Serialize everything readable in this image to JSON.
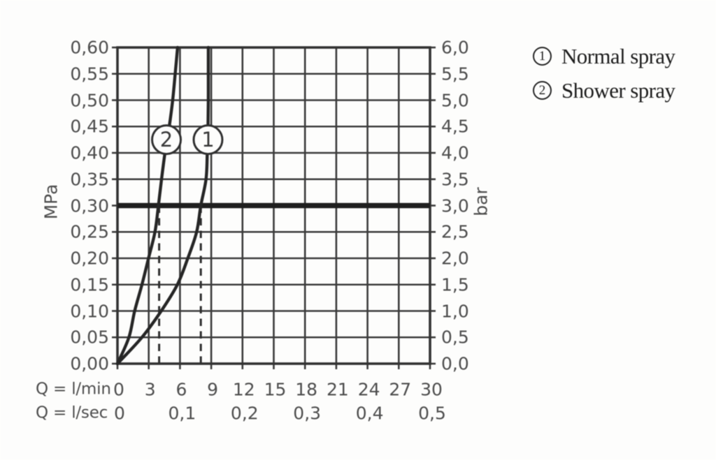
{
  "chart_data": {
    "type": "line",
    "title": "",
    "description": "Flow rate diagram: pressure (MPa / bar) versus flow rate (l/min and l/sec) for two spray modes",
    "grid": true,
    "colors": {
      "grid": "#3c3c3c",
      "frame": "#333333",
      "curve": "#262626",
      "reference_line": "#1f1f1f",
      "guide_dash": "#2e2e2e",
      "tick_text": "#4e4e4e",
      "legend_text": "#1d1d1d",
      "background": "#fdfdfc"
    },
    "x_lmin": {
      "axis_label": "Q = l/min",
      "min": 0,
      "max": 30,
      "tick_step": 3,
      "ticks": [
        "0",
        "3",
        "6",
        "9",
        "12",
        "15",
        "18",
        "21",
        "24",
        "27",
        "30"
      ]
    },
    "x_lsec": {
      "axis_label": "Q = l/sec",
      "ticks": [
        {
          "label": "0",
          "q": 0
        },
        {
          "label": "0,1",
          "q": 6
        },
        {
          "label": "0,2",
          "q": 12
        },
        {
          "label": "0,3",
          "q": 18
        },
        {
          "label": "0,4",
          "q": 24
        },
        {
          "label": "0,5",
          "q": 30
        }
      ]
    },
    "y_left": {
      "unit": "MPa",
      "min": 0,
      "max": 0.6,
      "tick_step": 0.05,
      "ticks": [
        "0,60",
        "0,55",
        "0,50",
        "0,45",
        "0,40",
        "0,35",
        "0,30",
        "0,25",
        "0,20",
        "0,15",
        "0,10",
        "0,05",
        "0,00"
      ]
    },
    "y_right": {
      "unit": "bar",
      "min": 0,
      "max": 6,
      "tick_step": 0.5,
      "ticks": [
        "6,0",
        "5,5",
        "5,0",
        "4,5",
        "4,0",
        "3,5",
        "3,0",
        "2,5",
        "2,0",
        "1,5",
        "1,0",
        "0,5",
        "0,0"
      ]
    },
    "reference_line": {
      "mpa": 0.3,
      "bar": 3.0
    },
    "guides": [
      {
        "q_lmin": 4.0,
        "from_mpa": 0.0,
        "to_mpa": 0.3
      },
      {
        "q_lmin": 8.0,
        "from_mpa": 0.0,
        "to_mpa": 0.3
      }
    ],
    "series": [
      {
        "name": "Normal spray",
        "symbol": "1",
        "points_mpa_lmin": [
          [
            0.0,
            0.0
          ],
          [
            0.05,
            2.35
          ],
          [
            0.1,
            4.2
          ],
          [
            0.15,
            5.75
          ],
          [
            0.2,
            6.75
          ],
          [
            0.25,
            7.6
          ],
          [
            0.3,
            8.0
          ],
          [
            0.35,
            8.5
          ],
          [
            0.4,
            8.62
          ],
          [
            0.45,
            8.69
          ],
          [
            0.5,
            8.72
          ],
          [
            0.55,
            8.72
          ],
          [
            0.6,
            8.72
          ]
        ],
        "marker": {
          "mpa": 0.425,
          "q_lmin": 8.69
        }
      },
      {
        "name": "Shower spray",
        "symbol": "2",
        "points_mpa_lmin": [
          [
            0.0,
            0.0
          ],
          [
            0.05,
            1.1
          ],
          [
            0.1,
            1.65
          ],
          [
            0.15,
            2.35
          ],
          [
            0.2,
            2.98
          ],
          [
            0.25,
            3.6
          ],
          [
            0.3,
            3.93
          ],
          [
            0.35,
            4.23
          ],
          [
            0.4,
            4.56
          ],
          [
            0.45,
            4.97
          ],
          [
            0.5,
            5.3
          ],
          [
            0.55,
            5.54
          ],
          [
            0.6,
            5.77
          ]
        ],
        "marker": {
          "mpa": 0.425,
          "q_lmin": 4.7
        }
      }
    ],
    "legend": [
      {
        "symbol": "1",
        "label": "Normal spray"
      },
      {
        "symbol": "2",
        "label": "Shower spray"
      }
    ]
  }
}
